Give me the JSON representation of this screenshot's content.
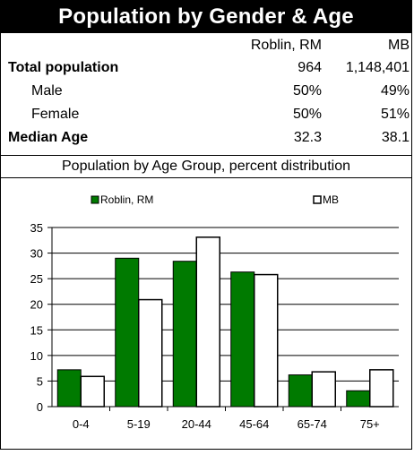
{
  "title": "Population by Gender & Age",
  "table": {
    "col_rm": "Roblin, RM",
    "col_mb": "MB",
    "rows": [
      {
        "label": "Total population",
        "rm": "964",
        "mb": "1,148,401"
      },
      {
        "label": "Male",
        "rm": "50%",
        "mb": "49%"
      },
      {
        "label": "Female",
        "rm": "50%",
        "mb": "51%"
      },
      {
        "label": "Median Age",
        "rm": "32.3",
        "mb": "38.1"
      }
    ]
  },
  "subtitle": "Population by Age Group, percent distribution",
  "chart_data": {
    "type": "bar",
    "categories": [
      "0-4",
      "5-19",
      "20-44",
      "45-64",
      "65-74",
      "75+"
    ],
    "series": [
      {
        "name": "Roblin, RM",
        "color": "#007a00",
        "values": [
          7.2,
          29.0,
          28.4,
          26.3,
          6.2,
          3.1
        ]
      },
      {
        "name": "MB",
        "color": "#ffffff",
        "values": [
          5.9,
          20.9,
          33.1,
          25.8,
          6.8,
          7.2
        ]
      }
    ],
    "ylim": [
      0,
      35
    ],
    "yticks": [
      0,
      5,
      10,
      15,
      20,
      25,
      30,
      35
    ],
    "grid": true,
    "legend": "top"
  }
}
